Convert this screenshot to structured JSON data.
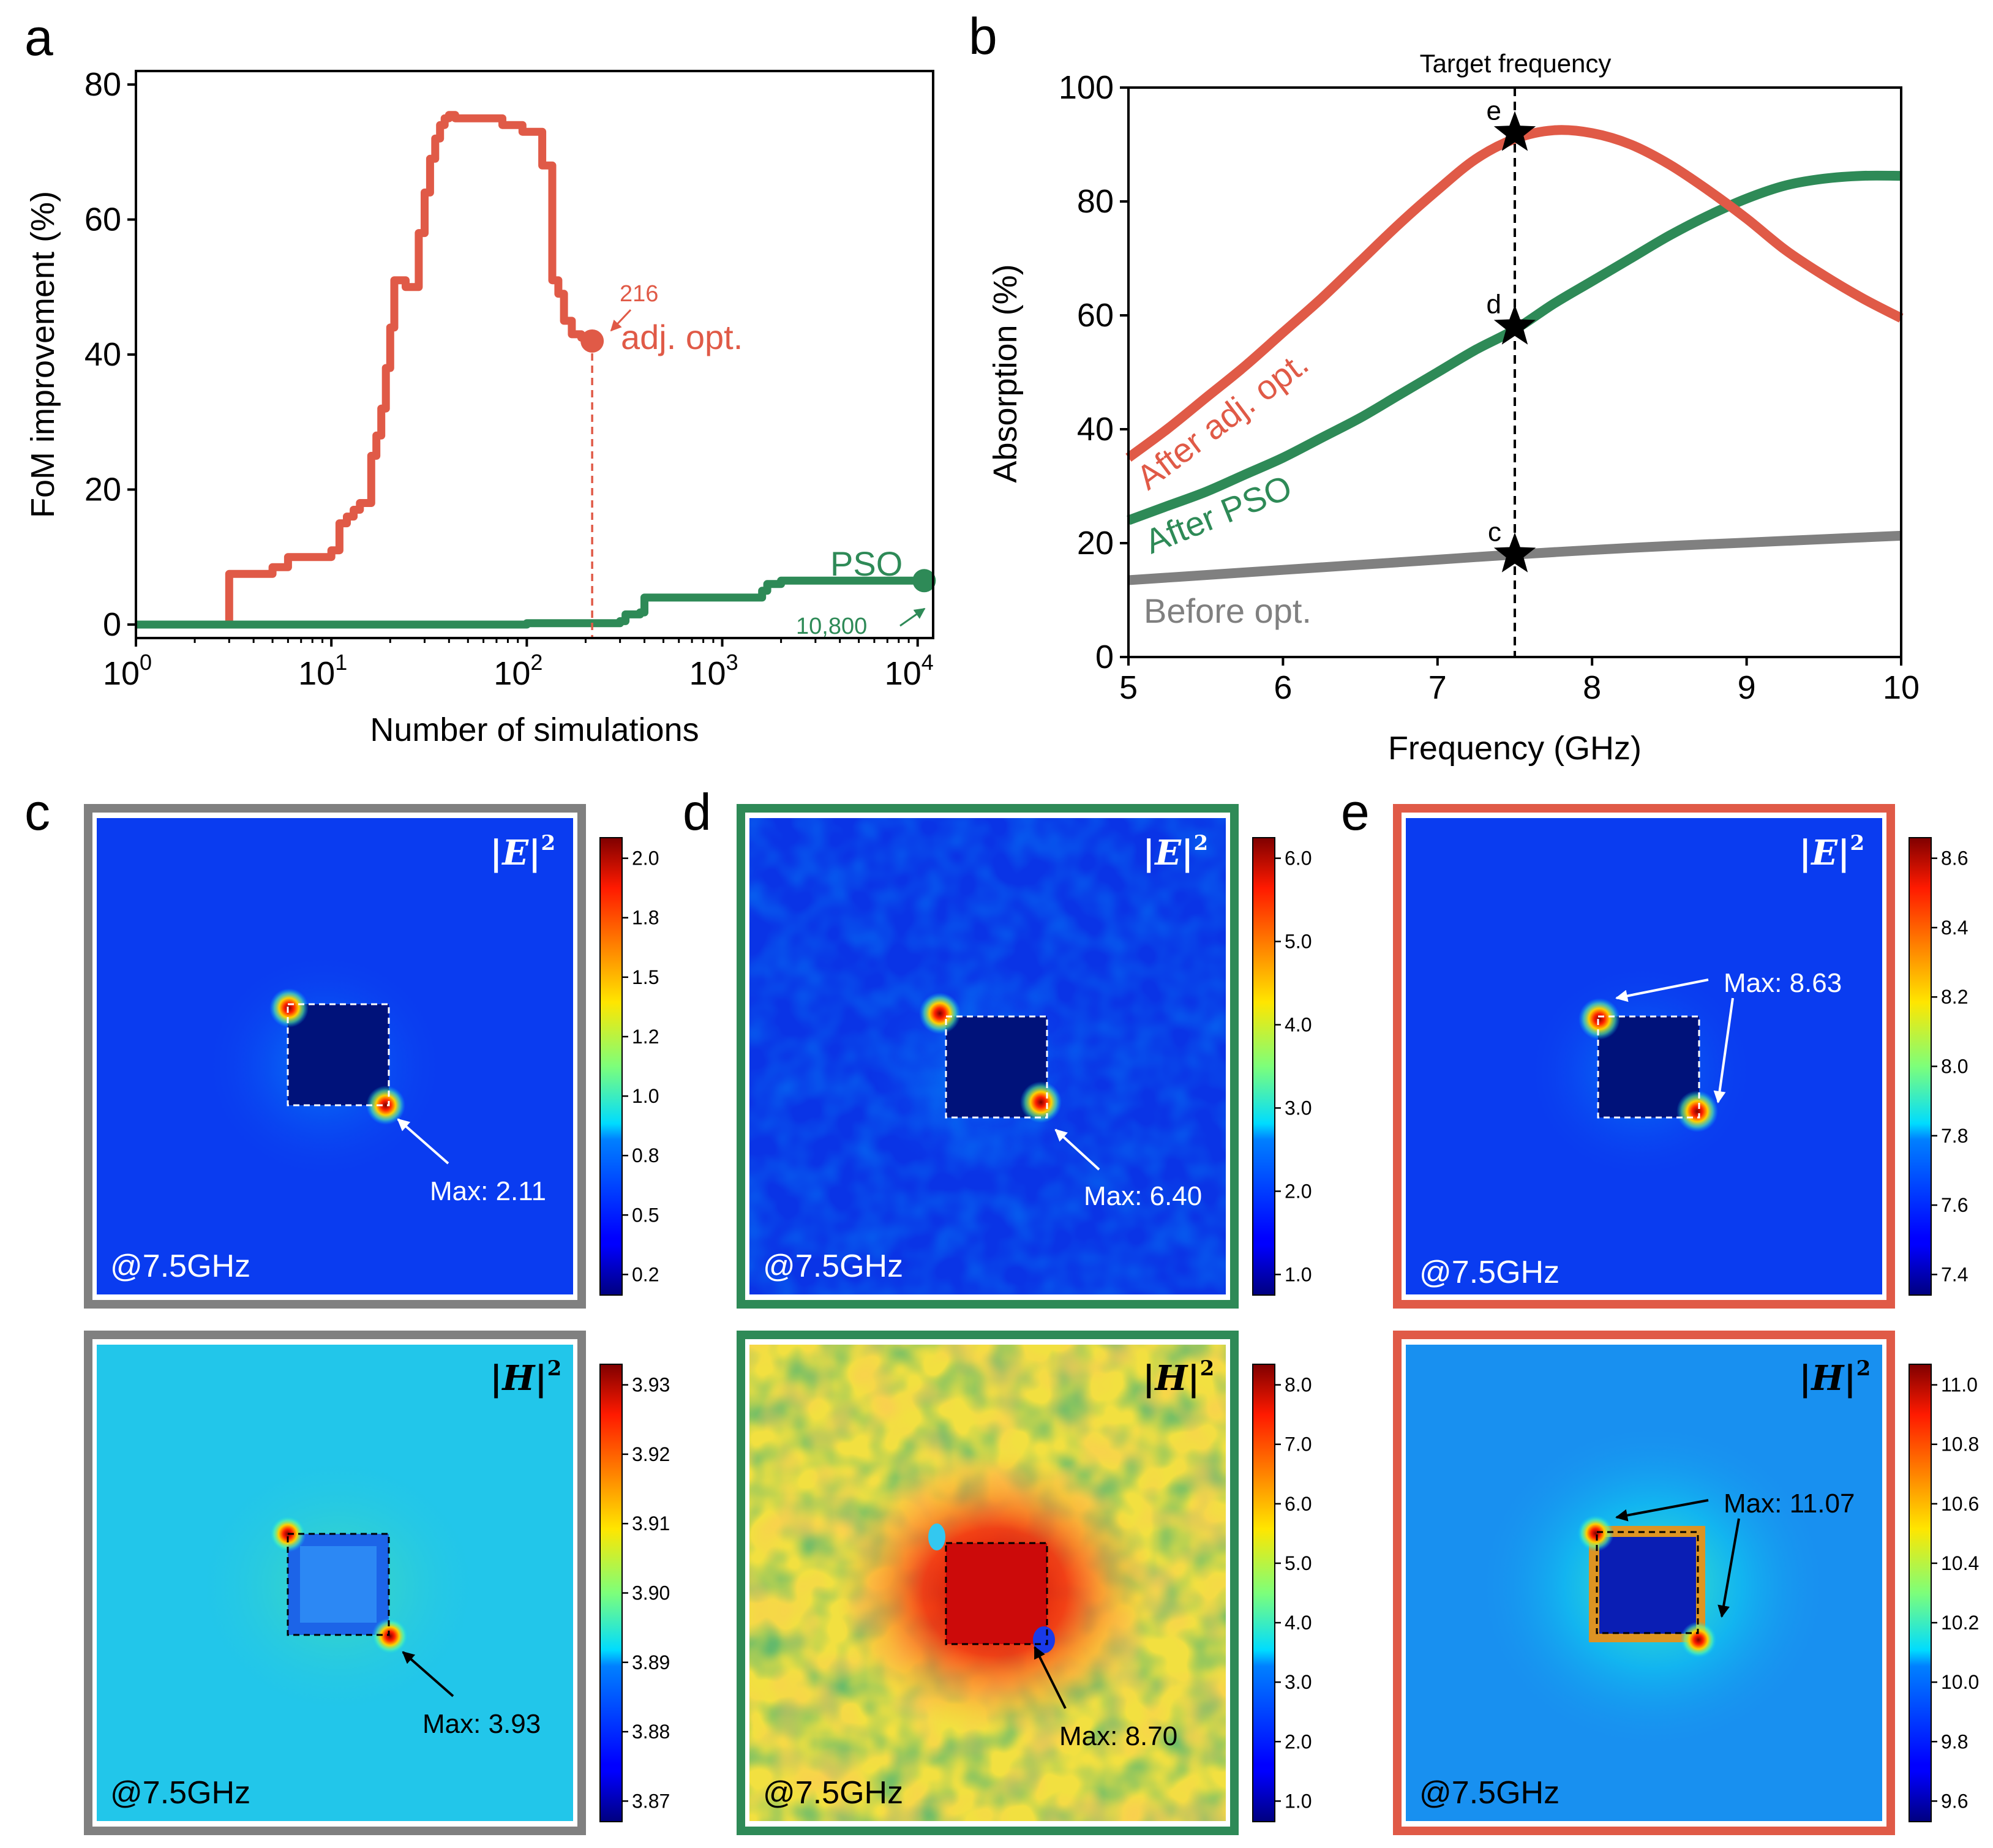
{
  "colors": {
    "adjoint": "#e05a47",
    "pso": "#2e8a57",
    "before": "#808080",
    "black": "#000000",
    "white": "#ffffff",
    "frame_c": "#808080",
    "frame_d": "#2e8a57",
    "frame_e": "#e05a47"
  },
  "panel_labels": {
    "a": "a",
    "b": "b",
    "c": "c",
    "d": "d",
    "e": "e"
  },
  "chart_data": [
    {
      "id": "a",
      "type": "line",
      "xscale": "log",
      "xlim": [
        1,
        12000
      ],
      "ylim": [
        -2,
        82
      ],
      "xlabel": "Number of simulations",
      "ylabel": "FoM improvement (%)",
      "xticks": [
        {
          "value": 1,
          "base": "10",
          "exp": "0"
        },
        {
          "value": 10,
          "base": "10",
          "exp": "1"
        },
        {
          "value": 100,
          "base": "10",
          "exp": "2"
        },
        {
          "value": 1000,
          "base": "10",
          "exp": "3"
        },
        {
          "value": 10000,
          "base": "10",
          "exp": "4"
        }
      ],
      "yticks": [
        {
          "value": 0,
          "label": "0"
        },
        {
          "value": 20,
          "label": "20"
        },
        {
          "value": 40,
          "label": "40"
        },
        {
          "value": 60,
          "label": "60"
        },
        {
          "value": 80,
          "label": "80"
        }
      ],
      "series": [
        {
          "name": "adj. opt.",
          "color_key": "adjoint",
          "end_label": "216",
          "x": [
            1,
            2,
            3,
            4,
            5,
            6,
            7,
            9,
            10,
            11,
            12,
            13,
            14,
            16,
            17,
            18,
            19,
            20,
            21,
            22,
            24,
            27,
            28,
            30,
            32,
            34,
            36,
            38,
            40,
            43,
            46,
            50,
            55,
            75,
            95,
            120,
            135,
            145,
            155,
            170,
            190,
            216
          ],
          "y": [
            0,
            0,
            7.5,
            7.5,
            8.5,
            10,
            10,
            10,
            11,
            15,
            16,
            17,
            18,
            25,
            28,
            32,
            38,
            44,
            51,
            51,
            50,
            50,
            58,
            64,
            69,
            72,
            74,
            75,
            75.5,
            75,
            75,
            75,
            75,
            74,
            73,
            68,
            51,
            49,
            45,
            43,
            42.5,
            42
          ]
        },
        {
          "name": "PSO",
          "color_key": "pso",
          "end_label": "10,800",
          "x": [
            1,
            20,
            50,
            100,
            300,
            320,
            380,
            400,
            1200,
            1600,
            1700,
            2000,
            2200,
            10800
          ],
          "y": [
            0,
            0,
            0,
            0.2,
            0.5,
            1.5,
            1.8,
            4,
            4,
            5,
            6,
            6.5,
            6.5,
            6.5
          ]
        }
      ],
      "annotations": {
        "adj_label": "adj. opt.",
        "adj_count": "216",
        "pso_label": "PSO",
        "pso_count": "10,800"
      }
    },
    {
      "id": "b",
      "type": "line",
      "xlim": [
        5,
        10
      ],
      "ylim": [
        0,
        100
      ],
      "xlabel": "Frequency (GHz)",
      "ylabel": "Absorption (%)",
      "title": "Target frequency",
      "target_x": 7.5,
      "xticks": [
        {
          "value": 5,
          "label": "5"
        },
        {
          "value": 6,
          "label": "6"
        },
        {
          "value": 7,
          "label": "7"
        },
        {
          "value": 8,
          "label": "8"
        },
        {
          "value": 9,
          "label": "9"
        },
        {
          "value": 10,
          "label": "10"
        }
      ],
      "yticks": [
        {
          "value": 0,
          "label": "0"
        },
        {
          "value": 20,
          "label": "20"
        },
        {
          "value": 40,
          "label": "40"
        },
        {
          "value": 60,
          "label": "60"
        },
        {
          "value": 80,
          "label": "80"
        },
        {
          "value": 100,
          "label": "100"
        }
      ],
      "series": [
        {
          "name": "After adj. opt.",
          "color_key": "adjoint",
          "x": [
            5.0,
            5.25,
            5.5,
            5.75,
            6.0,
            6.25,
            6.5,
            6.75,
            7.0,
            7.25,
            7.5,
            7.75,
            8.0,
            8.25,
            8.5,
            8.75,
            9.0,
            9.25,
            9.5,
            9.75,
            10.0
          ],
          "y": [
            35,
            40,
            45.5,
            51,
            57,
            63,
            69.5,
            76,
            82,
            87.5,
            91,
            92.5,
            92,
            90,
            86.5,
            82,
            77,
            71.5,
            67,
            63,
            59.5
          ]
        },
        {
          "name": "After PSO",
          "color_key": "pso",
          "x": [
            5.0,
            5.25,
            5.5,
            5.75,
            6.0,
            6.25,
            6.5,
            6.75,
            7.0,
            7.25,
            7.5,
            7.75,
            8.0,
            8.25,
            8.5,
            8.75,
            9.0,
            9.25,
            9.5,
            9.75,
            10.0
          ],
          "y": [
            24,
            26.5,
            29,
            32,
            35,
            38.5,
            42,
            46,
            50,
            54,
            57.5,
            62,
            66,
            70,
            74,
            77.5,
            80.5,
            82.8,
            84,
            84.5,
            84.5
          ]
        },
        {
          "name": "Before opt.",
          "color_key": "before",
          "x": [
            5.0,
            5.5,
            6.0,
            6.5,
            7.0,
            7.5,
            8.0,
            8.5,
            9.0,
            9.5,
            10.0
          ],
          "y": [
            13.5,
            14.4,
            15.3,
            16.2,
            17.1,
            18,
            18.8,
            19.5,
            20.1,
            20.7,
            21.3
          ]
        }
      ],
      "markers": [
        {
          "label": "e",
          "x": 7.5,
          "y": 92
        },
        {
          "label": "d",
          "x": 7.5,
          "y": 58
        },
        {
          "label": "c",
          "x": 7.5,
          "y": 18
        }
      ]
    }
  ],
  "field_maps": {
    "field_E": "|E|",
    "field_H": "|H|",
    "power": "2",
    "freq_label": "@7.5GHz",
    "c": {
      "E": {
        "colorbar": [
          "2.0",
          "1.8",
          "1.5",
          "1.2",
          "1.0",
          "0.8",
          "0.5",
          "0.2"
        ],
        "max_label": "Max: 2.11"
      },
      "H": {
        "colorbar": [
          "3.93",
          "3.92",
          "3.91",
          "3.90",
          "3.89",
          "3.88",
          "3.87"
        ],
        "max_label": "Max: 3.93"
      }
    },
    "d": {
      "E": {
        "colorbar": [
          "6.0",
          "5.0",
          "4.0",
          "3.0",
          "2.0",
          "1.0"
        ],
        "max_label": "Max: 6.40"
      },
      "H": {
        "colorbar": [
          "8.0",
          "7.0",
          "6.0",
          "5.0",
          "4.0",
          "3.0",
          "2.0",
          "1.0"
        ],
        "max_label": "Max: 8.70"
      }
    },
    "e": {
      "E": {
        "colorbar": [
          "8.6",
          "8.4",
          "8.2",
          "8.0",
          "7.8",
          "7.6",
          "7.4"
        ],
        "max_label": "Max: 8.63"
      },
      "H": {
        "colorbar": [
          "11.0",
          "10.8",
          "10.6",
          "10.4",
          "10.2",
          "10.0",
          "9.8",
          "9.6"
        ],
        "max_label": "Max: 11.07"
      }
    }
  }
}
